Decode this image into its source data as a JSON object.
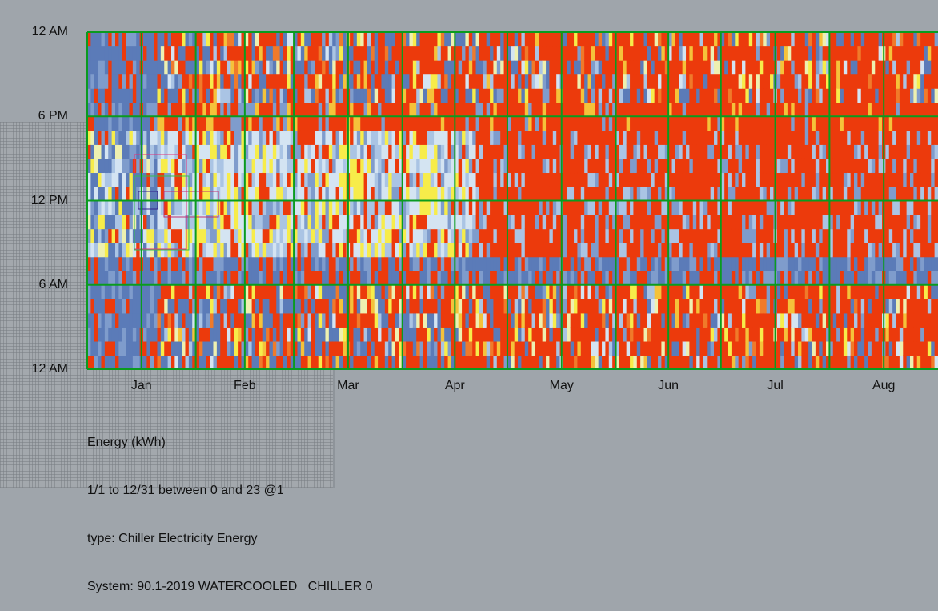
{
  "chart_data": {
    "type": "heatmap",
    "title": "Energy (kWh)",
    "subtitle_lines": [
      "1/1 to 12/31 between 0 and 23 @1",
      "type: Chiller Electricity Energy",
      "System: 90.1-2019 WATERCOOLED   CHILLER 0"
    ],
    "y_ticks": [
      "12 AM",
      "6 AM",
      "12 PM",
      "6 PM",
      "12 AM"
    ],
    "y_range_hours": [
      0,
      24
    ],
    "x_ticks": [
      "Jan",
      "Feb",
      "Mar",
      "Apr",
      "May",
      "Jun",
      "Jul",
      "Aug"
    ],
    "x_range_days": [
      1,
      243
    ],
    "month_starts_day": [
      1,
      32,
      60,
      91,
      121,
      152,
      182,
      213
    ],
    "color_scale": [
      "#5b7bb8",
      "#7f9ccc",
      "#aac4e4",
      "#d4e4f2",
      "#eef0b0",
      "#f7ec4a",
      "#f5c23a",
      "#f07a2a",
      "#ec3a0c"
    ],
    "grid": "on",
    "grid_color": "#0a9b1f",
    "background": "#9fa5ab",
    "cell_value_range": [
      0,
      8
    ]
  }
}
